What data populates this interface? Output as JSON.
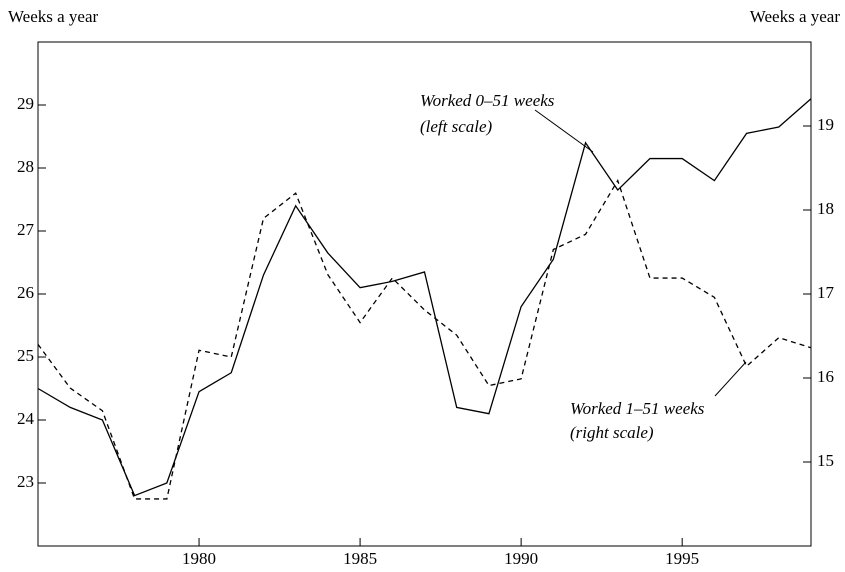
{
  "chart_data": {
    "type": "line",
    "y_label": "Weeks a year",
    "y2_label": "Weeks a year",
    "x": [
      1975,
      1976,
      1977,
      1978,
      1979,
      1980,
      1981,
      1982,
      1983,
      1984,
      1985,
      1986,
      1987,
      1988,
      1989,
      1990,
      1991,
      1992,
      1993,
      1994,
      1995,
      1996,
      1997,
      1998,
      1999
    ],
    "series": [
      {
        "name": "Worked 0–51 weeks",
        "color": "#000000",
        "dash": "solid",
        "values": [
          24.5,
          24.2,
          24.0,
          22.8,
          23.0,
          24.45,
          24.75,
          26.3,
          27.4,
          26.65,
          26.1,
          26.2,
          26.35,
          24.2,
          24.1,
          25.8,
          26.55,
          28.4,
          27.65,
          28.15,
          28.15,
          27.8,
          28.55,
          28.65,
          29.1
        ]
      },
      {
        "name": "Worked 1–51 weeks",
        "color": "#000000",
        "dash": "dashed",
        "axis": "y2",
        "values": [
          16.4,
          15.88,
          15.61,
          14.56,
          14.56,
          16.33,
          16.25,
          17.9,
          18.2,
          17.23,
          16.66,
          17.19,
          16.81,
          16.51,
          15.91,
          15.99,
          17.53,
          17.71,
          18.35,
          17.19,
          17.19,
          16.96,
          16.14,
          16.48,
          16.36
        ]
      }
    ],
    "annotations": [
      "Worked 0–51 weeks",
      "(left scale)",
      "Worked 1–51 weeks",
      "(right scale)"
    ],
    "xlim": [
      1975,
      1999
    ],
    "xticks": [
      1980,
      1985,
      1990,
      1995
    ],
    "ylim": [
      22,
      30
    ],
    "yticks": [
      23,
      24,
      25,
      26,
      27,
      28,
      29
    ],
    "y2lim": [
      14,
      20
    ],
    "y2ticks": [
      15,
      16,
      17,
      18,
      19
    ],
    "grid": false
  }
}
